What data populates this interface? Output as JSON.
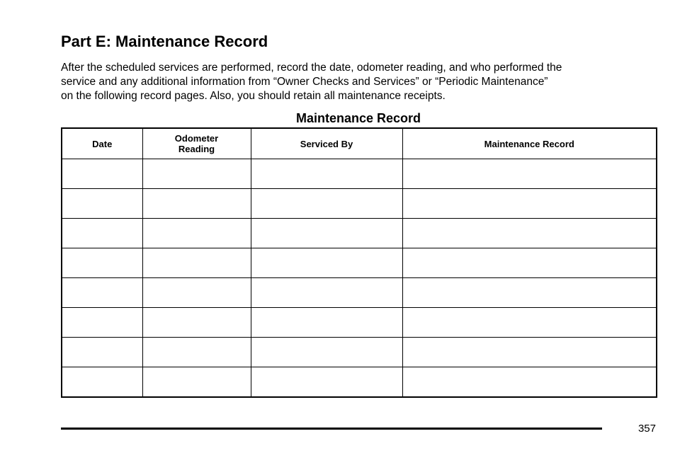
{
  "heading": "Part E: Maintenance Record",
  "intro_lines": [
    "After the scheduled services are performed, record the date, odometer reading, and who performed the",
    "service and any additional information from “Owner Checks and Services” or “Periodic Maintenance”",
    "on the following record pages. Also, you should retain all maintenance receipts."
  ],
  "table": {
    "title": "Maintenance Record",
    "columns": [
      {
        "line1": "Date",
        "line2": ""
      },
      {
        "line1": "Odometer",
        "line2": "Reading"
      },
      {
        "line1": "Serviced By",
        "line2": ""
      },
      {
        "line1": "Maintenance Record",
        "line2": ""
      }
    ],
    "rows": [
      [
        "",
        "",
        "",
        ""
      ],
      [
        "",
        "",
        "",
        ""
      ],
      [
        "",
        "",
        "",
        ""
      ],
      [
        "",
        "",
        "",
        ""
      ],
      [
        "",
        "",
        "",
        ""
      ],
      [
        "",
        "",
        "",
        ""
      ],
      [
        "",
        "",
        "",
        ""
      ],
      [
        "",
        "",
        "",
        ""
      ]
    ]
  },
  "footer": {
    "page_number": "357"
  }
}
